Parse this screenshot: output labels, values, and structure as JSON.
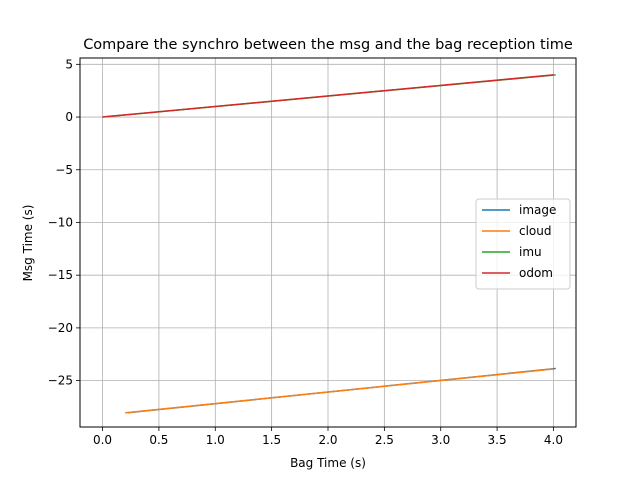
{
  "chart_data": {
    "type": "line",
    "title": "Compare the synchro between the msg and the bag reception time",
    "xlabel": "Bag Time (s)",
    "ylabel": "Msg Time (s)",
    "xlim": [
      -0.2,
      4.2
    ],
    "ylim": [
      -29.4,
      5.6
    ],
    "xticks": [
      0.0,
      0.5,
      1.0,
      1.5,
      2.0,
      2.5,
      3.0,
      3.5,
      4.0
    ],
    "xtick_labels": [
      "0.0",
      "0.5",
      "1.0",
      "1.5",
      "2.0",
      "2.5",
      "3.0",
      "3.5",
      "4.0"
    ],
    "yticks": [
      5,
      0,
      -5,
      -10,
      -15,
      -20,
      -25
    ],
    "ytick_labels": [
      "5",
      "0",
      "−5",
      "−10",
      "−15",
      "−20",
      "−25"
    ],
    "grid": true,
    "legend_position": "center-right",
    "series": [
      {
        "name": "image",
        "color": "#1f77b4",
        "x": [
          0.22,
          4.02
        ],
        "y": [
          -28.05,
          -23.85
        ]
      },
      {
        "name": "cloud",
        "color": "#ff7f0e",
        "x": [
          0.2,
          4.0
        ],
        "y": [
          -28.05,
          -23.9
        ]
      },
      {
        "name": "imu",
        "color": "#2ca02c",
        "x": [
          0.0,
          4.02
        ],
        "y": [
          0.0,
          4.0
        ]
      },
      {
        "name": "odom",
        "color": "#d62728",
        "x": [
          0.0,
          4.0
        ],
        "y": [
          0.0,
          4.0
        ]
      }
    ]
  }
}
